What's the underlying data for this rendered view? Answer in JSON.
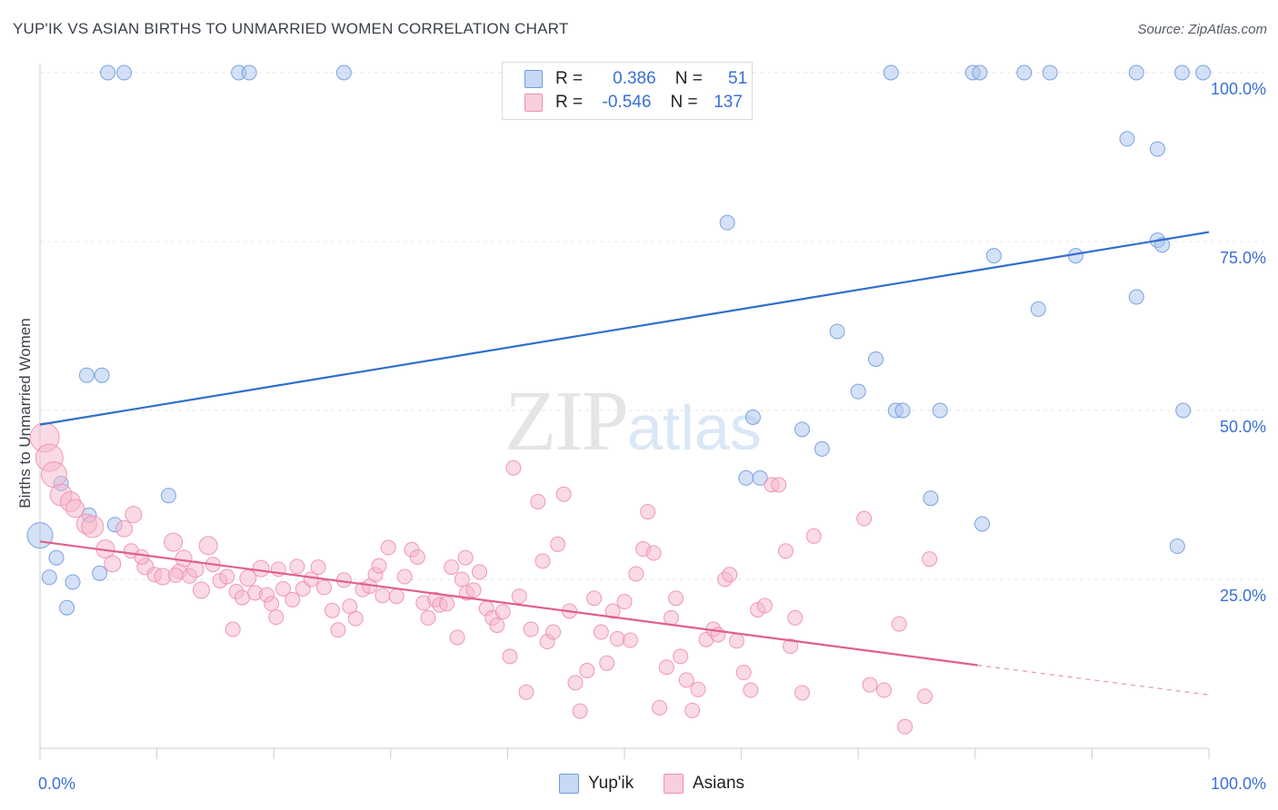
{
  "header": {
    "title": "YUP'IK VS ASIAN BIRTHS TO UNMARRIED WOMEN CORRELATION CHART",
    "source": "Source: ZipAtlas.com"
  },
  "watermark": {
    "zip": "ZIP",
    "atlas": "atlas"
  },
  "legend": {
    "r_label": "R =",
    "n_label": "N =",
    "rows": [
      {
        "r": "0.386",
        "n": "51",
        "color": "#a9c4ee"
      },
      {
        "r": "-0.546",
        "n": "137",
        "color": "#f5b5c9"
      }
    ]
  },
  "bottom_legend": [
    {
      "name": "Yup'ik",
      "color": "#a9c4ee"
    },
    {
      "name": "Asians",
      "color": "#f5b5c9"
    }
  ],
  "chart_data": {
    "type": "scatter",
    "title": "YUP'IK VS ASIAN BIRTHS TO UNMARRIED WOMEN CORRELATION CHART",
    "xlabel": "",
    "ylabel": "Births to Unmarried Women",
    "xlim": [
      0,
      100
    ],
    "ylim": [
      0,
      102
    ],
    "x_tick_labels": [
      "0.0%",
      "100.0%"
    ],
    "y_tick_labels": [
      "25.0%",
      "50.0%",
      "75.0%",
      "100.0%"
    ],
    "y_ticks": [
      25,
      50,
      75,
      100
    ],
    "grid": "horizontal dashed",
    "legend_placement": "top-center",
    "series": [
      {
        "name": "Yup'ik",
        "color": "#6f9be0",
        "fill": "#a9c4ee",
        "regression": {
          "x": [
            0,
            100
          ],
          "y": [
            47.9,
            76.4
          ],
          "color": "#2f6fcc"
        },
        "points": [
          [
            0,
            31.5,
            14
          ],
          [
            1.4,
            28.2,
            8
          ],
          [
            0.8,
            25.3,
            8
          ],
          [
            1.8,
            39.2,
            8
          ],
          [
            4.2,
            34.5,
            8
          ],
          [
            6.4,
            33.1,
            8
          ],
          [
            5.1,
            25.9,
            8
          ],
          [
            2.8,
            24.6,
            8
          ],
          [
            2.3,
            20.8,
            8
          ],
          [
            4.0,
            55.2,
            8
          ],
          [
            5.3,
            55.2,
            8
          ],
          [
            11.0,
            37.4,
            8
          ],
          [
            5.8,
            100,
            8
          ],
          [
            7.2,
            100,
            8
          ],
          [
            17.0,
            100,
            8
          ],
          [
            17.9,
            100,
            8
          ],
          [
            26.0,
            100,
            8
          ],
          [
            72.8,
            100,
            8
          ],
          [
            79.8,
            100,
            8
          ],
          [
            80.4,
            100,
            8
          ],
          [
            84.2,
            100,
            8
          ],
          [
            86.4,
            100,
            8
          ],
          [
            93.8,
            100,
            8
          ],
          [
            97.7,
            100,
            8
          ],
          [
            99.5,
            100,
            8
          ],
          [
            93.0,
            90.2,
            8
          ],
          [
            95.6,
            88.7,
            8
          ],
          [
            58.8,
            77.8,
            8
          ],
          [
            81.6,
            72.9,
            8
          ],
          [
            88.6,
            72.9,
            8
          ],
          [
            95.6,
            75.2,
            8
          ],
          [
            96.0,
            74.5,
            8
          ],
          [
            93.8,
            66.8,
            8
          ],
          [
            85.4,
            65.0,
            8
          ],
          [
            68.2,
            61.7,
            8
          ],
          [
            71.5,
            57.6,
            8
          ],
          [
            70.0,
            52.8,
            8
          ],
          [
            73.2,
            50.0,
            8
          ],
          [
            73.8,
            50.0,
            8
          ],
          [
            77.0,
            50.0,
            8
          ],
          [
            61.0,
            49.0,
            8
          ],
          [
            65.2,
            47.2,
            8
          ],
          [
            66.9,
            44.3,
            8
          ],
          [
            97.8,
            50.0,
            8
          ],
          [
            60.4,
            40.0,
            8
          ],
          [
            61.6,
            40.0,
            8
          ],
          [
            76.2,
            37.0,
            8
          ],
          [
            80.6,
            33.2,
            8
          ],
          [
            97.3,
            29.9,
            8
          ]
        ]
      },
      {
        "name": "Asians",
        "color": "#ee8fae",
        "fill": "#f5b5c9",
        "regression": {
          "x": [
            0,
            80.2
          ],
          "y": [
            30.6,
            12.3
          ],
          "dashed_to": [
            100,
            7.9
          ],
          "color": "#e0608a"
        },
        "points": [
          [
            0.4,
            46.0,
            16
          ],
          [
            0.8,
            43.0,
            15
          ],
          [
            1.2,
            40.5,
            14
          ],
          [
            1.8,
            37.5,
            12
          ],
          [
            2.6,
            36.5,
            11
          ],
          [
            3.0,
            35.5,
            10
          ],
          [
            4.0,
            33.2,
            11
          ],
          [
            4.5,
            32.8,
            12
          ],
          [
            5.6,
            29.5,
            10
          ],
          [
            6.2,
            27.3,
            9
          ],
          [
            7.2,
            32.5,
            9
          ],
          [
            7.8,
            29.2,
            8
          ],
          [
            8.0,
            34.6,
            9
          ],
          [
            9.0,
            26.9,
            9
          ],
          [
            8.7,
            28.3,
            8
          ],
          [
            9.8,
            25.7,
            8
          ],
          [
            10.5,
            25.4,
            9
          ],
          [
            11.4,
            30.5,
            10
          ],
          [
            11.9,
            26.2,
            8
          ],
          [
            12.3,
            28.1,
            9
          ],
          [
            12.8,
            25.5,
            8
          ],
          [
            13.3,
            26.5,
            9
          ],
          [
            13.8,
            23.4,
            9
          ],
          [
            14.4,
            30.0,
            10
          ],
          [
            14.8,
            27.2,
            8
          ],
          [
            15.4,
            24.8,
            8
          ],
          [
            16.0,
            25.4,
            8
          ],
          [
            16.5,
            17.6,
            8
          ],
          [
            16.8,
            23.2,
            8
          ],
          [
            17.3,
            22.3,
            8
          ],
          [
            17.8,
            25.2,
            9
          ],
          [
            18.4,
            23.0,
            8
          ],
          [
            18.9,
            26.6,
            9
          ],
          [
            19.4,
            22.7,
            8
          ],
          [
            19.8,
            21.4,
            8
          ],
          [
            20.2,
            19.4,
            8
          ],
          [
            20.8,
            23.6,
            8
          ],
          [
            21.6,
            22.0,
            8
          ],
          [
            22.0,
            26.9,
            8
          ],
          [
            22.5,
            23.6,
            8
          ],
          [
            23.2,
            25.0,
            8
          ],
          [
            23.8,
            26.8,
            8
          ],
          [
            24.3,
            23.8,
            8
          ],
          [
            25.5,
            17.5,
            8
          ],
          [
            25.0,
            20.4,
            8
          ],
          [
            26.0,
            24.9,
            8
          ],
          [
            27.0,
            19.2,
            8
          ],
          [
            26.5,
            21.0,
            8
          ],
          [
            27.6,
            23.5,
            8
          ],
          [
            28.2,
            24.0,
            8
          ],
          [
            28.7,
            25.7,
            8
          ],
          [
            29.3,
            22.6,
            8
          ],
          [
            29.8,
            29.7,
            8
          ],
          [
            30.5,
            22.5,
            8
          ],
          [
            31.2,
            25.4,
            8
          ],
          [
            31.8,
            29.4,
            8
          ],
          [
            32.3,
            28.3,
            8
          ],
          [
            32.8,
            21.5,
            8
          ],
          [
            33.2,
            19.3,
            8
          ],
          [
            33.8,
            22.0,
            8
          ],
          [
            34.2,
            21.2,
            8
          ],
          [
            34.8,
            21.4,
            8
          ],
          [
            35.2,
            26.8,
            8
          ],
          [
            35.7,
            16.4,
            8
          ],
          [
            36.1,
            25.0,
            8
          ],
          [
            36.5,
            23.0,
            8
          ],
          [
            37.1,
            23.4,
            8
          ],
          [
            37.6,
            26.1,
            8
          ],
          [
            38.2,
            20.7,
            8
          ],
          [
            38.7,
            19.3,
            8
          ],
          [
            39.1,
            18.2,
            8
          ],
          [
            39.6,
            20.2,
            8
          ],
          [
            40.2,
            13.6,
            8
          ],
          [
            40.5,
            41.5,
            8
          ],
          [
            41.0,
            22.5,
            8
          ],
          [
            41.6,
            8.3,
            8
          ],
          [
            42.0,
            17.6,
            8
          ],
          [
            42.6,
            36.5,
            8
          ],
          [
            43.0,
            27.7,
            8
          ],
          [
            43.4,
            15.8,
            8
          ],
          [
            43.9,
            17.2,
            8
          ],
          [
            44.3,
            30.2,
            8
          ],
          [
            44.8,
            37.6,
            8
          ],
          [
            45.3,
            20.3,
            8
          ],
          [
            45.8,
            9.7,
            8
          ],
          [
            46.2,
            5.5,
            8
          ],
          [
            46.8,
            11.5,
            8
          ],
          [
            47.4,
            22.2,
            8
          ],
          [
            48.0,
            17.2,
            8
          ],
          [
            48.5,
            12.6,
            8
          ],
          [
            49.0,
            20.3,
            8
          ],
          [
            49.4,
            16.2,
            8
          ],
          [
            50.0,
            21.7,
            8
          ],
          [
            50.5,
            16.0,
            8
          ],
          [
            51.0,
            25.8,
            8
          ],
          [
            51.6,
            29.5,
            8
          ],
          [
            52.0,
            35.0,
            8
          ],
          [
            52.5,
            28.9,
            8
          ],
          [
            53.0,
            6.0,
            8
          ],
          [
            53.6,
            12.0,
            8
          ],
          [
            54.0,
            19.3,
            8
          ],
          [
            54.4,
            22.2,
            8
          ],
          [
            54.8,
            13.6,
            8
          ],
          [
            55.3,
            10.1,
            8
          ],
          [
            55.8,
            5.6,
            8
          ],
          [
            56.3,
            8.7,
            8
          ],
          [
            57.0,
            16.1,
            8
          ],
          [
            57.6,
            17.6,
            8
          ],
          [
            58.0,
            16.8,
            8
          ],
          [
            58.6,
            25.0,
            8
          ],
          [
            59.0,
            25.7,
            8
          ],
          [
            59.6,
            15.9,
            8
          ],
          [
            60.2,
            11.2,
            8
          ],
          [
            60.8,
            8.6,
            8
          ],
          [
            61.4,
            20.5,
            8
          ],
          [
            62.0,
            21.1,
            8
          ],
          [
            62.6,
            39.0,
            8
          ],
          [
            63.2,
            39.0,
            8
          ],
          [
            63.8,
            29.2,
            8
          ],
          [
            64.2,
            15.1,
            8
          ],
          [
            64.6,
            19.3,
            8
          ],
          [
            65.2,
            8.2,
            8
          ],
          [
            66.2,
            31.4,
            8
          ],
          [
            70.5,
            34.0,
            8
          ],
          [
            71.0,
            9.4,
            8
          ],
          [
            72.2,
            8.6,
            8
          ],
          [
            73.5,
            18.4,
            8
          ],
          [
            74.0,
            3.2,
            8
          ],
          [
            75.7,
            7.7,
            8
          ],
          [
            76.1,
            28.0,
            8
          ],
          [
            36.4,
            28.2,
            8
          ],
          [
            29.0,
            27.0,
            8
          ],
          [
            20.4,
            26.5,
            8
          ],
          [
            11.6,
            25.6,
            8
          ]
        ]
      }
    ]
  }
}
